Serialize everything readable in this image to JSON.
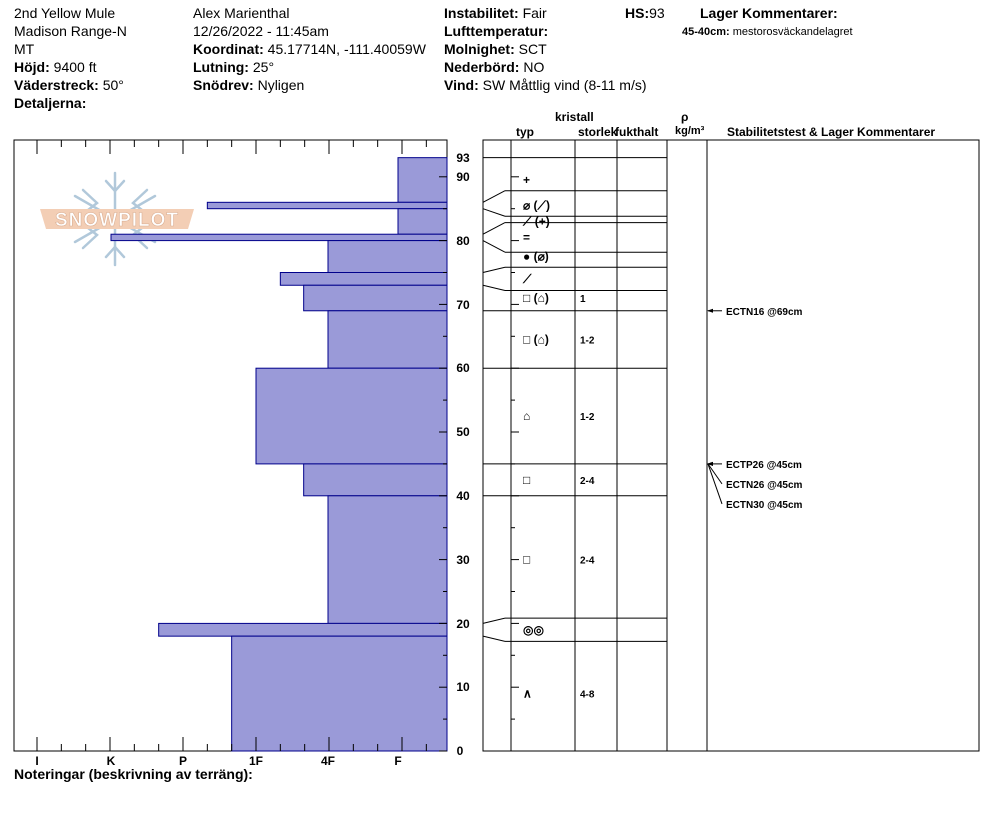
{
  "header": {
    "col1": [
      "2nd Yellow Mule",
      "Madison Range-N",
      "MT"
    ],
    "elevation_label": "Höjd:",
    "elevation": "9400 ft",
    "aspect_label": "Väderstreck:",
    "aspect": "50°",
    "details_label": "Detaljerna:",
    "observer": "Alex Marienthal",
    "datetime": "12/26/2022 - 11:45am",
    "coord_label": "Koordinat:",
    "coord": "45.17714N, -111.40059W",
    "slope_label": "Lutning:",
    "slope": "25°",
    "drift_label": "Snödrev:",
    "drift": "Nyligen",
    "instab_label": "Instabilitet:",
    "instab": "Fair",
    "airtemp_label": "Lufttemperatur:",
    "airtemp": "",
    "cloud_label": "Molnighet:",
    "cloud": "SCT",
    "precip_label": "Nederbörd:",
    "precip": "NO",
    "wind_label": "Vind:",
    "wind": "SW  Måttlig vind (8-11 m/s)",
    "hs_label": "HS:",
    "hs": "93",
    "layer_comments_label": "Lager Kommentarer:",
    "layer_comment_range": "45-40cm:",
    "layer_comment_text": "mestorosväckandelagret",
    "notes_label": "Noteringar (beskrivning av terräng):"
  },
  "logo_text": "SNOWPILOT",
  "columns": {
    "type": "typ",
    "crystal_line1": "kristall",
    "crystal_line2": "storlek",
    "moisture": "fukthalt",
    "rho": "ρ",
    "density_unit": "kg/m³",
    "stability": "Stabilitetstest & Lager Kommentarer"
  },
  "chart_data": {
    "type": "bar",
    "title": "",
    "ylim": [
      0,
      93
    ],
    "yticks": [
      "0",
      "10",
      "20",
      "30",
      "40",
      "50",
      "60",
      "70",
      "80",
      "90"
    ],
    "top_label": "93",
    "hardness_categories": [
      "I",
      "K",
      "P",
      "1F",
      "4F",
      "F"
    ],
    "layers": [
      {
        "top": 93,
        "bottom": 86,
        "hardness": "F",
        "grain": "+",
        "size": ""
      },
      {
        "top": 86,
        "bottom": 85,
        "hardness": "P+",
        "grain": "⌀ (⟋)",
        "size": ""
      },
      {
        "top": 85,
        "bottom": 81,
        "hardness": "F",
        "grain": "⟋ (+)",
        "size": ""
      },
      {
        "top": 81,
        "bottom": 80,
        "hardness": "K",
        "grain": "=",
        "size": ""
      },
      {
        "top": 80,
        "bottom": 75,
        "hardness": "4F",
        "grain": "● (⌀)",
        "size": ""
      },
      {
        "top": 75,
        "bottom": 73,
        "hardness": "1F+",
        "grain": "⟋",
        "size": ""
      },
      {
        "top": 73,
        "bottom": 69,
        "hardness": "4F-",
        "grain": "□ (⌂)",
        "size": "1"
      },
      {
        "top": 69,
        "bottom": 60,
        "hardness": "4F",
        "grain": "□ (⌂)",
        "size": "1-2"
      },
      {
        "top": 60,
        "bottom": 45,
        "hardness": "1F",
        "grain": "⌂",
        "size": "1-2"
      },
      {
        "top": 45,
        "bottom": 40,
        "hardness": "4F-",
        "grain": "□",
        "size": "2-4"
      },
      {
        "top": 40,
        "bottom": 20,
        "hardness": "4F",
        "grain": "□",
        "size": "2-4"
      },
      {
        "top": 20,
        "bottom": 18,
        "hardness": "P-",
        "grain": "◎◎",
        "size": ""
      },
      {
        "top": 18,
        "bottom": 0,
        "hardness": "1F-",
        "grain": "∧",
        "size": "4-8"
      }
    ],
    "tests": [
      {
        "label": "ECTN16 @69cm",
        "depth": 69
      },
      {
        "label": "ECTP26 @45cm",
        "depth": 45
      },
      {
        "label": "ECTN26 @45cm",
        "depth": 45
      },
      {
        "label": "ECTN30 @45cm",
        "depth": 45
      }
    ],
    "colors": {
      "fill": "#9a9ad8",
      "stroke": "#00008b"
    }
  }
}
